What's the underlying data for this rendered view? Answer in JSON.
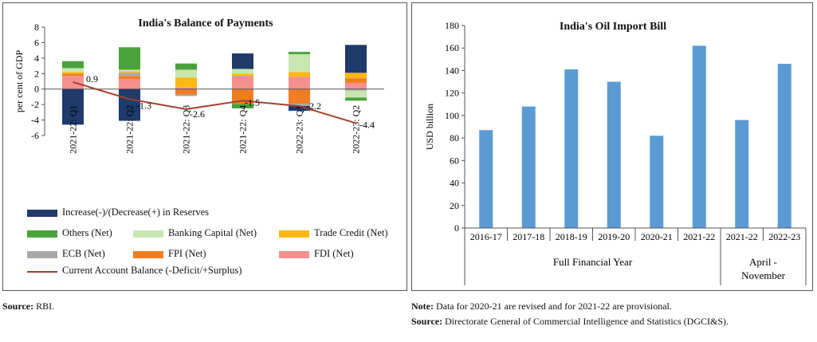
{
  "left": {
    "title": "India's Balance of Payments",
    "legend": [
      {
        "key": "reserves",
        "label": "Increase(-)/(Decrease(+) in Reserves"
      },
      {
        "key": "others",
        "label": "Others (Net)"
      },
      {
        "key": "banking",
        "label": "Banking Capital (Net)"
      },
      {
        "key": "trade",
        "label": "Trade Credit (Net)"
      },
      {
        "key": "ecb",
        "label": "ECB (Net)"
      },
      {
        "key": "fpi",
        "label": "FPI (Net)"
      },
      {
        "key": "fdi",
        "label": "FDI (Net)"
      },
      {
        "key": "cab",
        "label": "Current Account Balance (-Deficit/+Surplus)"
      }
    ]
  },
  "right": {
    "title": "India's Oil Import Bill"
  },
  "notes": {
    "source_left_label": "Source:",
    "source_left_text": " RBI.",
    "note_label": "Note:",
    "note_text": " Data for 2020-21 are revised and for 2021-22 are provisional.",
    "source_right_label": "Source:",
    "source_right_text": " Directorate General of Commercial Intelligence and Statistics (DGCI&S)."
  },
  "chart_data": [
    {
      "type": "bar",
      "stacked": true,
      "title": "India's Balance of Payments",
      "ylabel": "per cent of GDP",
      "ylim": [
        -6,
        8
      ],
      "yticks": [
        -6,
        -4,
        -2,
        0,
        2,
        4,
        6,
        8
      ],
      "categories": [
        "2021-22: Q1",
        "2021-22: Q2",
        "2021-22: Q3",
        "2021-22: Q4",
        "2022-23: Q1",
        "2022-23: Q2"
      ],
      "colors": {
        "fdi": "#f4908e",
        "fpi": "#f07d22",
        "ecb": "#a8a8a8",
        "trade": "#fdb813",
        "banking": "#c8e6b0",
        "others": "#4aa23a",
        "reserves": "#1f3a6b",
        "cab": "#a2402d"
      },
      "series": [
        {
          "key": "fdi",
          "name": "FDI (Net)",
          "values": [
            1.7,
            1.3,
            0.2,
            1.7,
            1.6,
            0.8
          ]
        },
        {
          "key": "fpi",
          "name": "FPI (Net)",
          "values": [
            0.3,
            0.4,
            -0.7,
            -1.9,
            -1.9,
            0.6
          ]
        },
        {
          "key": "ecb",
          "name": "ECB (Net)",
          "values": [
            0.0,
            0.4,
            -0.2,
            0.1,
            -0.3,
            -0.2
          ]
        },
        {
          "key": "trade",
          "name": "Trade Credit (Net)",
          "values": [
            0.2,
            0.2,
            1.3,
            0.2,
            0.6,
            0.7
          ]
        },
        {
          "key": "banking",
          "name": "Banking Capital (Net)",
          "values": [
            0.5,
            0.2,
            1.0,
            0.6,
            2.3,
            -0.9
          ]
        },
        {
          "key": "others",
          "name": "Others (Net)",
          "values": [
            0.9,
            2.9,
            0.8,
            -0.6,
            0.3,
            -0.4
          ]
        },
        {
          "key": "reserves",
          "name": "Increase(-)/(Decrease(+) in Reserves",
          "values": [
            -4.6,
            -4.1,
            0.0,
            2.0,
            -0.6,
            3.6
          ]
        }
      ],
      "line": {
        "key": "cab",
        "name": "Current Account Balance (-Deficit/+Surplus)",
        "values": [
          0.9,
          -1.3,
          -2.6,
          -1.5,
          -2.2,
          -4.4
        ]
      },
      "line_labels": [
        "0.9",
        "-1.3",
        "-2.6",
        "-1.5",
        "-2.2",
        "-4.4"
      ]
    },
    {
      "type": "bar",
      "title": "India's Oil Import Bill",
      "ylabel": "USD billion",
      "ylim": [
        0,
        180
      ],
      "yticks": [
        0,
        20,
        40,
        60,
        80,
        100,
        120,
        140,
        160,
        180
      ],
      "color": "#5b9bd5",
      "categories": [
        "2016-17",
        "2017-18",
        "2018-19",
        "2019-20",
        "2020-21",
        "2021-22",
        "2021-22",
        "2022-23"
      ],
      "values": [
        87,
        108,
        141,
        130,
        82,
        162,
        96,
        146
      ],
      "groups": [
        {
          "label": "Full Financial Year",
          "span": [
            0,
            5
          ]
        },
        {
          "label": "April - November",
          "span": [
            6,
            7
          ]
        }
      ]
    }
  ]
}
